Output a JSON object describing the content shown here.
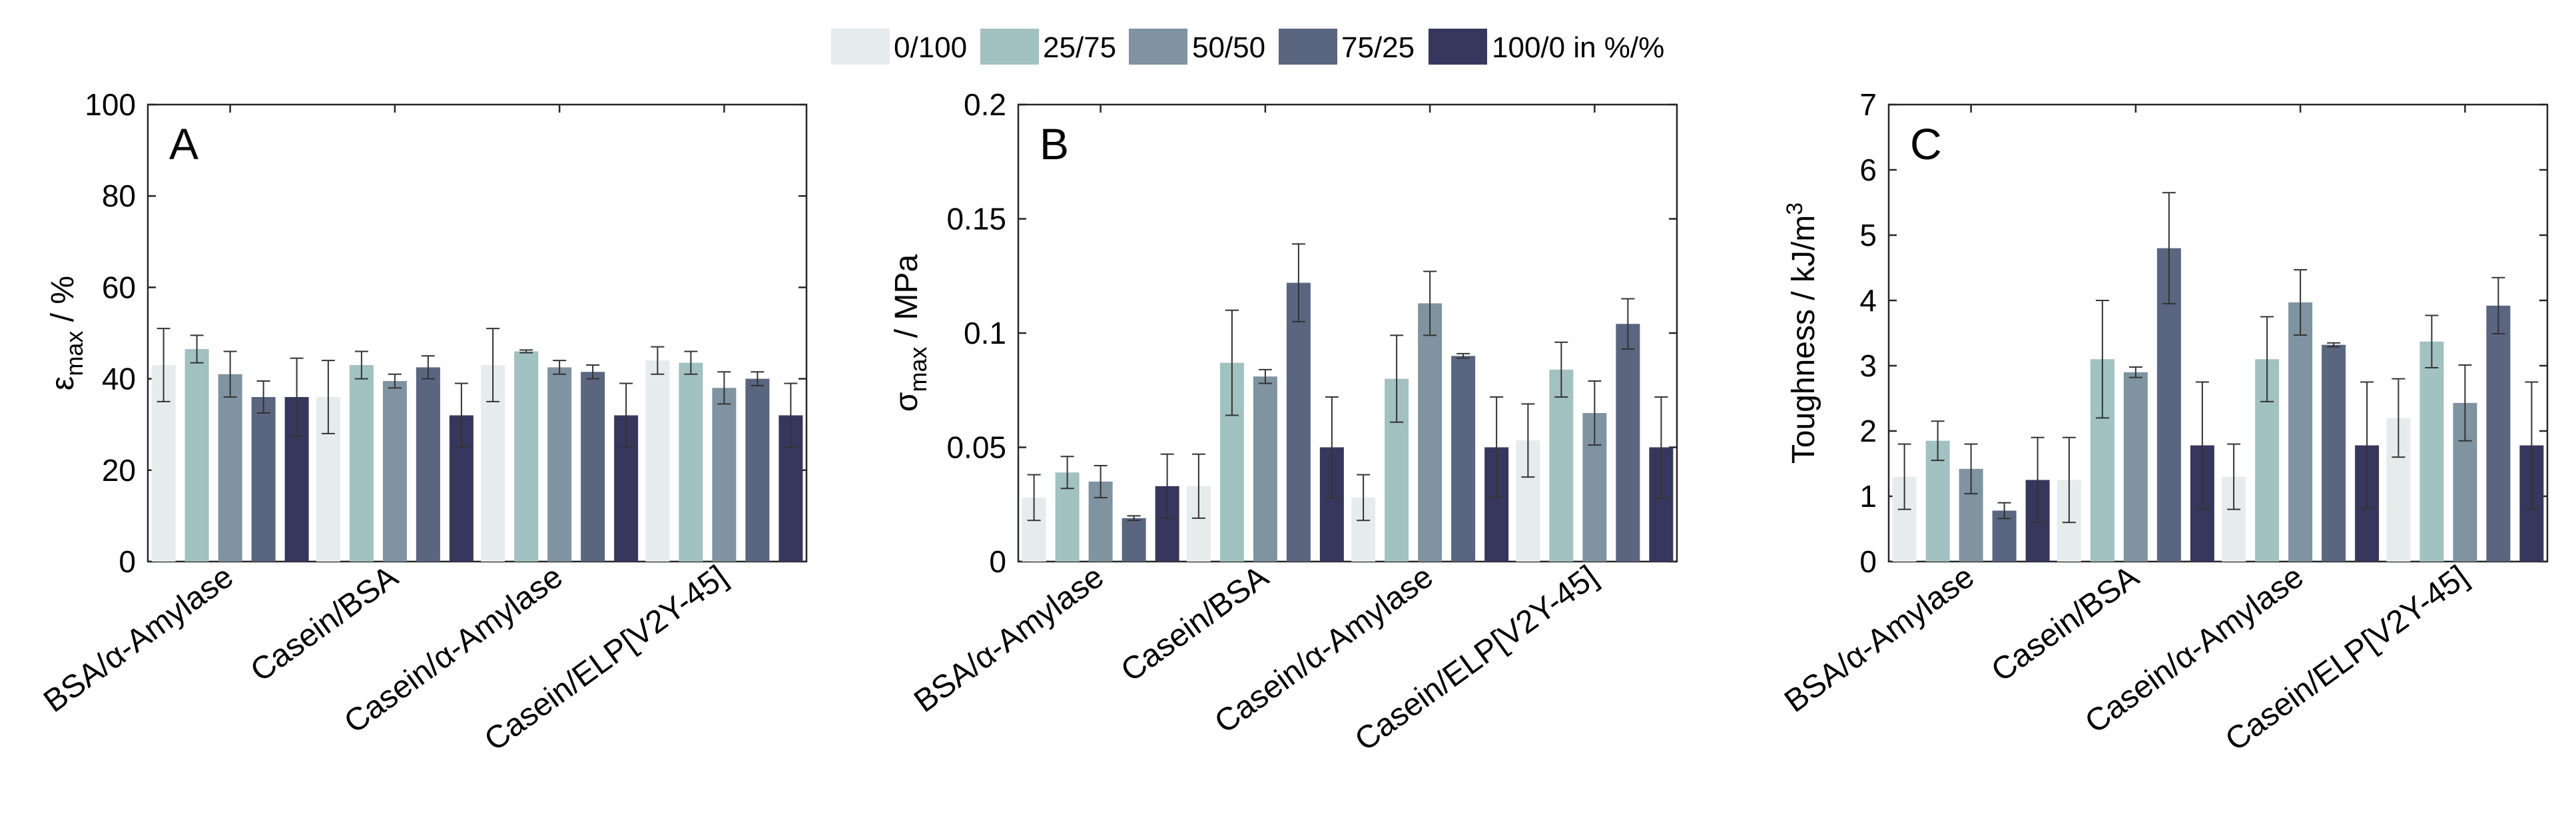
{
  "legend": {
    "items": [
      {
        "label": "0/100",
        "color": "#e6eceb"
      },
      {
        "label": "25/75",
        "color": "#a2c1c1"
      },
      {
        "label": "50/50",
        "color": "#7f93a0"
      },
      {
        "label": "75/25",
        "color": "#5a6580"
      },
      {
        "label": "100/0 in %/%",
        "color": "#37375d"
      }
    ]
  },
  "chart_data": [
    {
      "type": "bar",
      "panel_letter": "A",
      "ylabel": "ε_max / %",
      "ylabel_main": "ε",
      "ylabel_sub": "max",
      "ylabel_rest": " / %",
      "ylim": [
        0,
        100
      ],
      "yticks": [
        0,
        20,
        40,
        60,
        80,
        100
      ],
      "ytick_labels": [
        "0",
        "20",
        "40",
        "60",
        "80",
        "100"
      ],
      "categories": [
        "BSA/α-Amylase",
        "Casein/BSA",
        "Casein/α-Amylase",
        "Casein/ELP[V2Y-45]"
      ],
      "series": [
        {
          "name": "0/100",
          "values": [
            43,
            36,
            43,
            44
          ],
          "errors": [
            8,
            8,
            8,
            3
          ]
        },
        {
          "name": "25/75",
          "values": [
            46.5,
            43,
            46,
            43.5
          ],
          "errors": [
            3,
            3,
            0.3,
            2.5
          ]
        },
        {
          "name": "50/50",
          "values": [
            41,
            39.5,
            42.5,
            38
          ],
          "errors": [
            5,
            1.5,
            1.5,
            3.5
          ]
        },
        {
          "name": "75/25",
          "values": [
            36,
            42.5,
            41.5,
            40
          ],
          "errors": [
            3.5,
            2.5,
            1.5,
            1.5
          ]
        },
        {
          "name": "100/0 in %/%",
          "values": [
            36,
            32,
            32,
            32
          ],
          "errors": [
            8.5,
            7,
            7,
            7
          ]
        }
      ]
    },
    {
      "type": "bar",
      "panel_letter": "B",
      "ylabel": "σ_max / MPa",
      "ylabel_main": "σ",
      "ylabel_sub": "max",
      "ylabel_rest": " / MPa",
      "ylim": [
        0,
        0.2
      ],
      "yticks": [
        0,
        0.05,
        0.1,
        0.15,
        0.2
      ],
      "ytick_labels": [
        "0",
        "0.05",
        "0.1",
        "0.15",
        "0.2"
      ],
      "categories": [
        "BSA/α-Amylase",
        "Casein/BSA",
        "Casein/α-Amylase",
        "Casein/ELP[V2Y-45]"
      ],
      "series": [
        {
          "name": "0/100",
          "values": [
            0.028,
            0.033,
            0.028,
            0.053
          ],
          "errors": [
            0.01,
            0.014,
            0.01,
            0.016
          ]
        },
        {
          "name": "25/75",
          "values": [
            0.039,
            0.087,
            0.08,
            0.084
          ],
          "errors": [
            0.007,
            0.023,
            0.019,
            0.012
          ]
        },
        {
          "name": "50/50",
          "values": [
            0.035,
            0.081,
            0.113,
            0.065
          ],
          "errors": [
            0.007,
            0.003,
            0.014,
            0.014
          ]
        },
        {
          "name": "75/25",
          "values": [
            0.019,
            0.122,
            0.09,
            0.104
          ],
          "errors": [
            0.001,
            0.017,
            0.001,
            0.011
          ]
        },
        {
          "name": "100/0 in %/%",
          "values": [
            0.033,
            0.05,
            0.05,
            0.05
          ],
          "errors": [
            0.014,
            0.022,
            0.022,
            0.022
          ]
        }
      ]
    },
    {
      "type": "bar",
      "panel_letter": "C",
      "ylabel": "Toughness / kJ/m³",
      "ylabel_main": "Toughness / kJ/m",
      "ylabel_sup": "3",
      "ylim": [
        0,
        7
      ],
      "yticks": [
        0,
        1,
        2,
        3,
        4,
        5,
        6,
        7
      ],
      "ytick_labels": [
        "0",
        "1",
        "2",
        "3",
        "4",
        "5",
        "6",
        "7"
      ],
      "categories": [
        "BSA/α-Amylase",
        "Casein/BSA",
        "Casein/α-Amylase",
        "Casein/ELP[V2Y-45]"
      ],
      "series": [
        {
          "name": "0/100",
          "values": [
            1.3,
            1.25,
            1.3,
            2.2
          ],
          "errors": [
            0.5,
            0.65,
            0.5,
            0.6
          ]
        },
        {
          "name": "25/75",
          "values": [
            1.85,
            3.1,
            3.1,
            3.37
          ],
          "errors": [
            0.3,
            0.9,
            0.65,
            0.4
          ]
        },
        {
          "name": "50/50",
          "values": [
            1.42,
            2.9,
            3.97,
            2.43
          ],
          "errors": [
            0.38,
            0.08,
            0.5,
            0.58
          ]
        },
        {
          "name": "75/25",
          "values": [
            0.78,
            4.8,
            3.32,
            3.92
          ],
          "errors": [
            0.12,
            0.85,
            0.03,
            0.43
          ]
        },
        {
          "name": "100/0 in %/%",
          "values": [
            1.25,
            1.78,
            1.78,
            1.78
          ],
          "errors": [
            0.65,
            0.97,
            0.97,
            0.97
          ]
        }
      ]
    }
  ]
}
